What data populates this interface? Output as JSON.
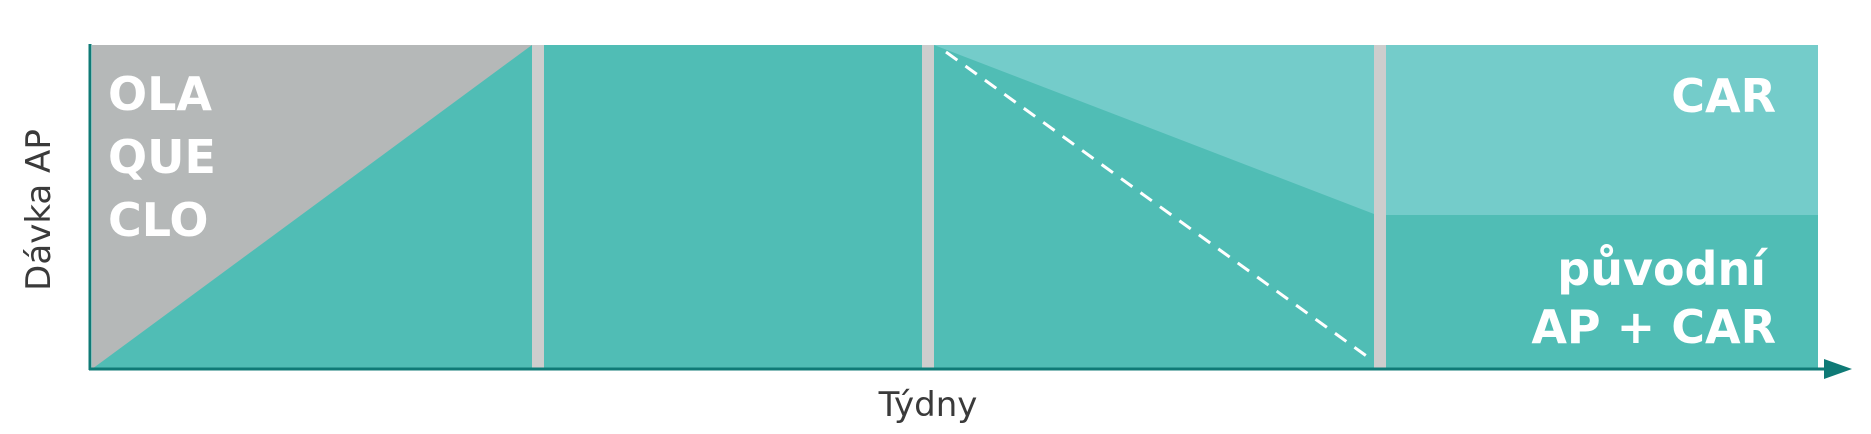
{
  "axes": {
    "y_label": "Dávka AP",
    "x_label": "Týdny"
  },
  "labels": {
    "drugs": [
      "OLA",
      "QUE",
      "CLO"
    ],
    "car": "CAR",
    "combo_line1": "původní",
    "combo_line2": "AP + CAR"
  },
  "colors": {
    "teal": "#50bdb5",
    "teal_light": "#74ccca",
    "gray": "#b5b8b8",
    "divider": "#cdcdcd",
    "axis": "#0f7a76",
    "axis_text": "#3a3a3a",
    "label_text": "#ffffff"
  }
}
